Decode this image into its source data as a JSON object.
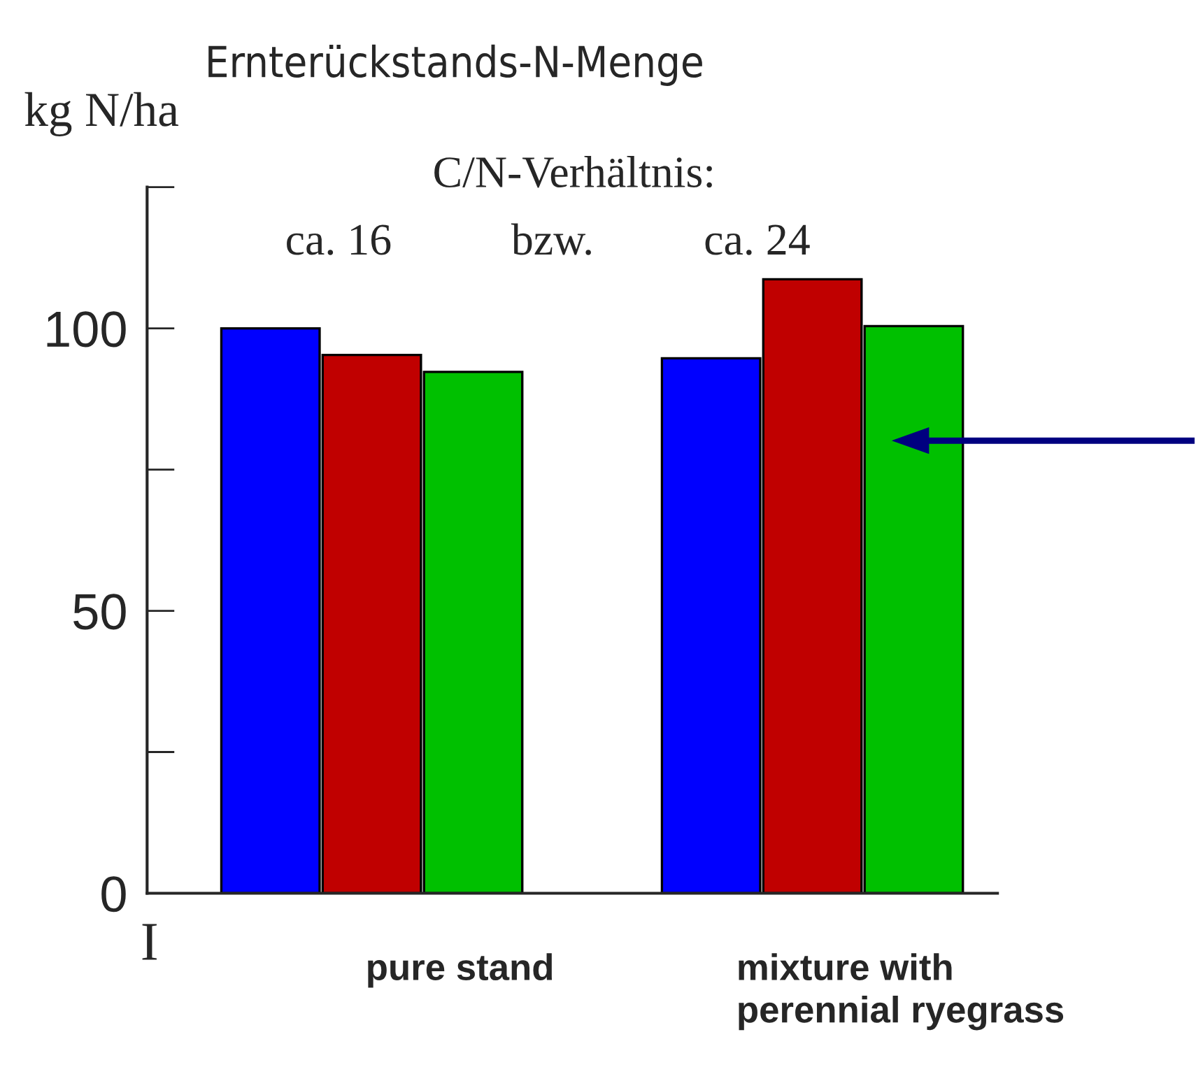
{
  "chart_data": {
    "type": "bar",
    "title": "Ernterückstands-N-Menge",
    "ylabel": "kg N/ha",
    "categories": [
      "pure stand",
      "mixture with\nperennial ryegrass"
    ],
    "series": [
      {
        "color": "#0000ff",
        "values": [
          100,
          94.7
        ]
      },
      {
        "color": "#c00000",
        "values": [
          95.3,
          108.7
        ]
      },
      {
        "color": "#00c000",
        "values": [
          92.3,
          100.4
        ]
      }
    ],
    "ylim": [
      0,
      125
    ],
    "yticks": [
      0,
      50,
      100
    ],
    "annotations": [
      "C/N-Verhältnis:",
      "ca. 16",
      "bzw.",
      "ca. 24",
      "I"
    ],
    "grid": false,
    "legend": false
  }
}
